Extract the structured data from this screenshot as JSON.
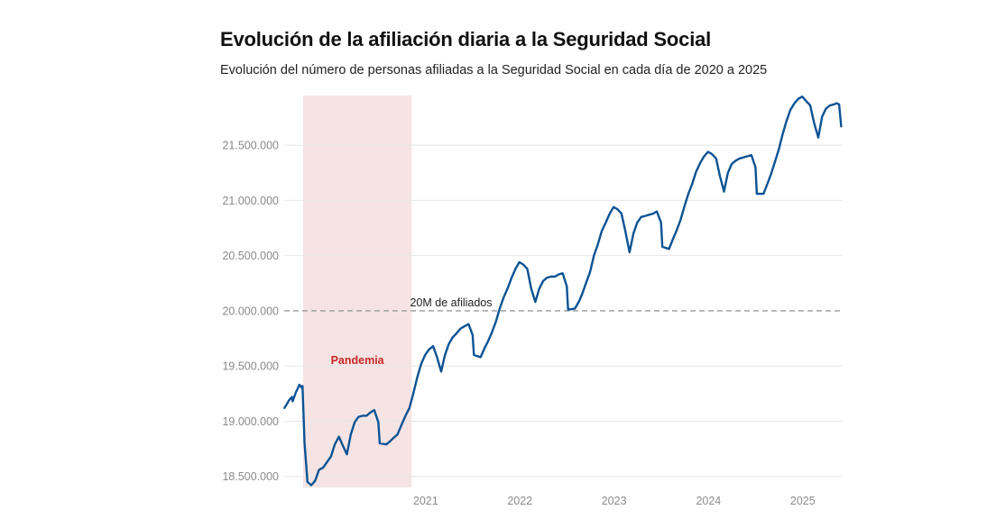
{
  "title": "Evolución de la afiliación diaria a la Seguridad Social",
  "subtitle": "Evolución del número de personas afiliadas a la Seguridad Social en cada día de 2020 a 2025",
  "colors": {
    "line": "#0b5394",
    "band": "#f6e4e4",
    "band_label": "#c62828",
    "grid": "#e6e6e6",
    "ref_line": "#9a9a9a"
  },
  "chart_data": {
    "type": "line",
    "title": "Evolución de la afiliación diaria a la Seguridad Social",
    "subtitle": "Evolución del número de personas afiliadas a la Seguridad Social en cada día de 2020 a 2025",
    "xlabel": "",
    "ylabel": "",
    "xlim": [
      "2020-01-01",
      "2025-11-30"
    ],
    "ylim": [
      18400000,
      21950000
    ],
    "x_ticks": [
      "2021",
      "2022",
      "2023",
      "2024",
      "2025"
    ],
    "y_ticks": [
      {
        "value": 18500000,
        "label": "18.500.000"
      },
      {
        "value": 19000000,
        "label": "19.000.000"
      },
      {
        "value": 19500000,
        "label": "19.500.000"
      },
      {
        "value": 20000000,
        "label": "20.000.000"
      },
      {
        "value": 20500000,
        "label": "20.500.000"
      },
      {
        "value": 21000000,
        "label": "21.000.000"
      },
      {
        "value": 21500000,
        "label": "21.500.000"
      }
    ],
    "grid": true,
    "reference_line": {
      "y": 20000000,
      "label": "20M de afiliados",
      "style": "dashed"
    },
    "shaded_band": {
      "x_start": "2020-03-14",
      "x_end": "2021-05-09",
      "label": "Pandemia"
    },
    "series": [
      {
        "points": [
          [
            "2020-01-02",
            19120000
          ],
          [
            "2020-01-10",
            19150000
          ],
          [
            "2020-01-20",
            19190000
          ],
          [
            "2020-01-31",
            19220000
          ],
          [
            "2020-02-03",
            19180000
          ],
          [
            "2020-02-15",
            19260000
          ],
          [
            "2020-02-29",
            19330000
          ],
          [
            "2020-03-10",
            19300000
          ],
          [
            "2020-03-12",
            19320000
          ],
          [
            "2020-03-20",
            18800000
          ],
          [
            "2020-03-31",
            18450000
          ],
          [
            "2020-04-15",
            18420000
          ],
          [
            "2020-04-30",
            18460000
          ],
          [
            "2020-05-15",
            18560000
          ],
          [
            "2020-05-31",
            18580000
          ],
          [
            "2020-06-15",
            18630000
          ],
          [
            "2020-06-30",
            18680000
          ],
          [
            "2020-07-15",
            18790000
          ],
          [
            "2020-07-31",
            18860000
          ],
          [
            "2020-08-15",
            18780000
          ],
          [
            "2020-08-31",
            18700000
          ],
          [
            "2020-09-15",
            18880000
          ],
          [
            "2020-09-30",
            18990000
          ],
          [
            "2020-10-15",
            19040000
          ],
          [
            "2020-10-31",
            19050000
          ],
          [
            "2020-11-15",
            19050000
          ],
          [
            "2020-11-30",
            19080000
          ],
          [
            "2020-12-15",
            19100000
          ],
          [
            "2020-12-31",
            18990000
          ],
          [
            "2021-01-05",
            18800000
          ],
          [
            "2021-01-31",
            18790000
          ],
          [
            "2021-02-15",
            18820000
          ],
          [
            "2021-02-28",
            18850000
          ],
          [
            "2021-03-15",
            18880000
          ],
          [
            "2021-03-31",
            18970000
          ],
          [
            "2021-04-15",
            19050000
          ],
          [
            "2021-04-30",
            19120000
          ],
          [
            "2021-05-15",
            19250000
          ],
          [
            "2021-05-31",
            19400000
          ],
          [
            "2021-06-15",
            19520000
          ],
          [
            "2021-06-30",
            19600000
          ],
          [
            "2021-07-15",
            19650000
          ],
          [
            "2021-07-31",
            19680000
          ],
          [
            "2021-08-15",
            19580000
          ],
          [
            "2021-08-31",
            19450000
          ],
          [
            "2021-09-15",
            19600000
          ],
          [
            "2021-09-30",
            19700000
          ],
          [
            "2021-10-15",
            19760000
          ],
          [
            "2021-10-31",
            19800000
          ],
          [
            "2021-11-15",
            19840000
          ],
          [
            "2021-11-30",
            19860000
          ],
          [
            "2021-12-15",
            19880000
          ],
          [
            "2021-12-31",
            19780000
          ],
          [
            "2022-01-05",
            19600000
          ],
          [
            "2022-01-31",
            19580000
          ],
          [
            "2022-02-15",
            19660000
          ],
          [
            "2022-02-28",
            19720000
          ],
          [
            "2022-03-15",
            19800000
          ],
          [
            "2022-03-31",
            19900000
          ],
          [
            "2022-04-15",
            20020000
          ],
          [
            "2022-04-30",
            20120000
          ],
          [
            "2022-05-15",
            20200000
          ],
          [
            "2022-05-31",
            20300000
          ],
          [
            "2022-06-15",
            20380000
          ],
          [
            "2022-06-30",
            20440000
          ],
          [
            "2022-07-15",
            20420000
          ],
          [
            "2022-07-31",
            20380000
          ],
          [
            "2022-08-15",
            20200000
          ],
          [
            "2022-08-31",
            20080000
          ],
          [
            "2022-09-15",
            20200000
          ],
          [
            "2022-09-30",
            20270000
          ],
          [
            "2022-10-15",
            20300000
          ],
          [
            "2022-10-31",
            20310000
          ],
          [
            "2022-11-15",
            20310000
          ],
          [
            "2022-11-30",
            20330000
          ],
          [
            "2022-12-15",
            20340000
          ],
          [
            "2022-12-31",
            20220000
          ],
          [
            "2023-01-05",
            20010000
          ],
          [
            "2023-01-31",
            20020000
          ],
          [
            "2023-02-15",
            20080000
          ],
          [
            "2023-02-28",
            20150000
          ],
          [
            "2023-03-15",
            20250000
          ],
          [
            "2023-03-31",
            20350000
          ],
          [
            "2023-04-15",
            20500000
          ],
          [
            "2023-04-30",
            20600000
          ],
          [
            "2023-05-15",
            20720000
          ],
          [
            "2023-05-31",
            20800000
          ],
          [
            "2023-06-15",
            20880000
          ],
          [
            "2023-06-30",
            20940000
          ],
          [
            "2023-07-15",
            20920000
          ],
          [
            "2023-07-31",
            20880000
          ],
          [
            "2023-08-15",
            20720000
          ],
          [
            "2023-08-31",
            20530000
          ],
          [
            "2023-09-15",
            20700000
          ],
          [
            "2023-09-30",
            20800000
          ],
          [
            "2023-10-15",
            20850000
          ],
          [
            "2023-10-31",
            20860000
          ],
          [
            "2023-11-15",
            20870000
          ],
          [
            "2023-11-30",
            20880000
          ],
          [
            "2023-12-15",
            20900000
          ],
          [
            "2023-12-31",
            20800000
          ],
          [
            "2024-01-05",
            20580000
          ],
          [
            "2024-01-31",
            20560000
          ],
          [
            "2024-02-15",
            20650000
          ],
          [
            "2024-02-28",
            20720000
          ],
          [
            "2024-03-15",
            20820000
          ],
          [
            "2024-03-31",
            20950000
          ],
          [
            "2024-04-15",
            21060000
          ],
          [
            "2024-04-30",
            21150000
          ],
          [
            "2024-05-15",
            21260000
          ],
          [
            "2024-05-31",
            21340000
          ],
          [
            "2024-06-15",
            21400000
          ],
          [
            "2024-06-30",
            21440000
          ],
          [
            "2024-07-15",
            21420000
          ],
          [
            "2024-07-31",
            21380000
          ],
          [
            "2024-08-15",
            21220000
          ],
          [
            "2024-08-31",
            21080000
          ],
          [
            "2024-09-15",
            21250000
          ],
          [
            "2024-09-30",
            21330000
          ],
          [
            "2024-10-15",
            21360000
          ],
          [
            "2024-10-31",
            21380000
          ],
          [
            "2024-11-15",
            21390000
          ],
          [
            "2024-11-30",
            21400000
          ],
          [
            "2024-12-15",
            21410000
          ],
          [
            "2024-12-31",
            21300000
          ],
          [
            "2025-01-05",
            21060000
          ],
          [
            "2025-01-31",
            21060000
          ],
          [
            "2025-02-15",
            21150000
          ],
          [
            "2025-02-28",
            21230000
          ],
          [
            "2025-03-15",
            21340000
          ],
          [
            "2025-03-31",
            21460000
          ],
          [
            "2025-04-15",
            21600000
          ],
          [
            "2025-04-30",
            21720000
          ],
          [
            "2025-05-15",
            21820000
          ],
          [
            "2025-05-31",
            21880000
          ],
          [
            "2025-06-15",
            21920000
          ],
          [
            "2025-06-30",
            21940000
          ],
          [
            "2025-07-15",
            21900000
          ],
          [
            "2025-07-31",
            21860000
          ],
          [
            "2025-08-15",
            21700000
          ],
          [
            "2025-08-31",
            21570000
          ],
          [
            "2025-09-15",
            21760000
          ],
          [
            "2025-09-30",
            21830000
          ],
          [
            "2025-10-15",
            21860000
          ],
          [
            "2025-10-31",
            21870000
          ],
          [
            "2025-11-10",
            21880000
          ],
          [
            "2025-11-20",
            21870000
          ],
          [
            "2025-11-28",
            21670000
          ]
        ]
      }
    ]
  }
}
